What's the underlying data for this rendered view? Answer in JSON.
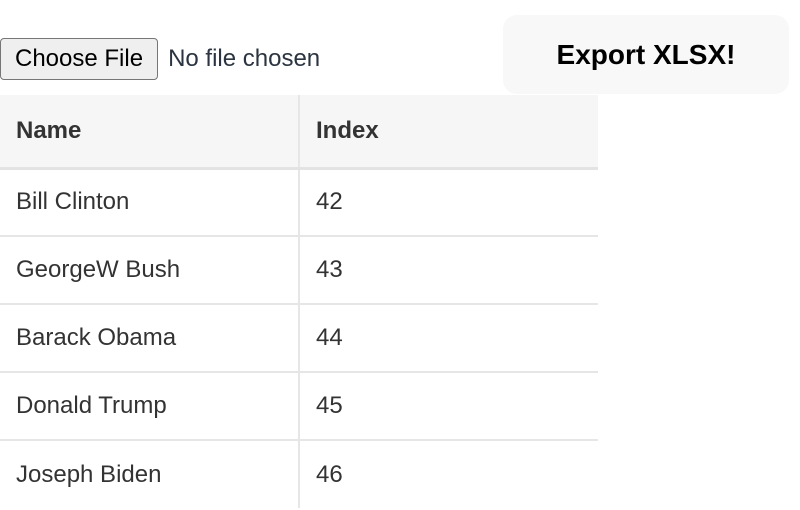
{
  "file_input": {
    "button_label": "Choose File",
    "status": "No file chosen"
  },
  "export_button": {
    "label": "Export XLSX!"
  },
  "table": {
    "headers": [
      "Name",
      "Index"
    ],
    "rows": [
      [
        "Bill Clinton",
        "42"
      ],
      [
        "GeorgeW Bush",
        "43"
      ],
      [
        "Barack Obama",
        "44"
      ],
      [
        "Donald Trump",
        "45"
      ],
      [
        "Joseph Biden",
        "46"
      ]
    ]
  }
}
